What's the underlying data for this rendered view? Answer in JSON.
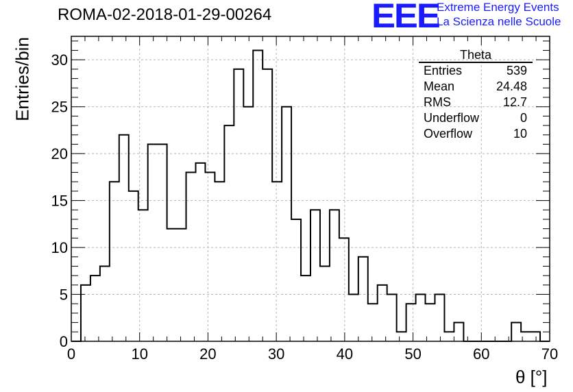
{
  "header": {
    "title": "ROMA-02-2018-01-29-00264",
    "logo_text": "EEE",
    "logo_line1": "Extreme Energy Events",
    "logo_line2": "La Scienza nelle Scuole"
  },
  "stats": {
    "title": "Theta",
    "rows": [
      {
        "label": "Entries",
        "value": "539"
      },
      {
        "label": "Mean",
        "value": "24.48"
      },
      {
        "label": "RMS",
        "value": "12.7"
      },
      {
        "label": "Underflow",
        "value": "0"
      },
      {
        "label": "Overflow",
        "value": "10"
      }
    ]
  },
  "chart_data": {
    "type": "bar",
    "style": "step-histogram",
    "title": "ROMA-02-2018-01-29-00264",
    "xlabel": "θ [°]",
    "ylabel": "Entries/bin",
    "xlim": [
      0,
      70
    ],
    "ylim": [
      0,
      32.5
    ],
    "grid": true,
    "legend": "none",
    "bin_width": 1.4,
    "x_ticks": [
      0,
      10,
      20,
      30,
      40,
      50,
      60,
      70
    ],
    "y_ticks": [
      0,
      5,
      10,
      15,
      20,
      25,
      30
    ],
    "values": [
      0,
      6,
      7,
      8,
      17,
      22,
      16,
      14,
      21,
      21,
      12,
      12,
      18,
      19,
      18,
      17,
      23,
      29,
      25,
      31,
      29,
      17,
      25,
      13,
      7,
      14,
      8,
      14,
      11,
      5,
      9,
      4,
      6,
      5,
      1,
      4,
      5,
      4,
      5,
      1,
      2,
      0,
      0,
      0,
      0,
      0,
      2,
      1,
      1,
      0
    ],
    "line_color": "#000000",
    "grid_color": "#b4b4b4"
  }
}
